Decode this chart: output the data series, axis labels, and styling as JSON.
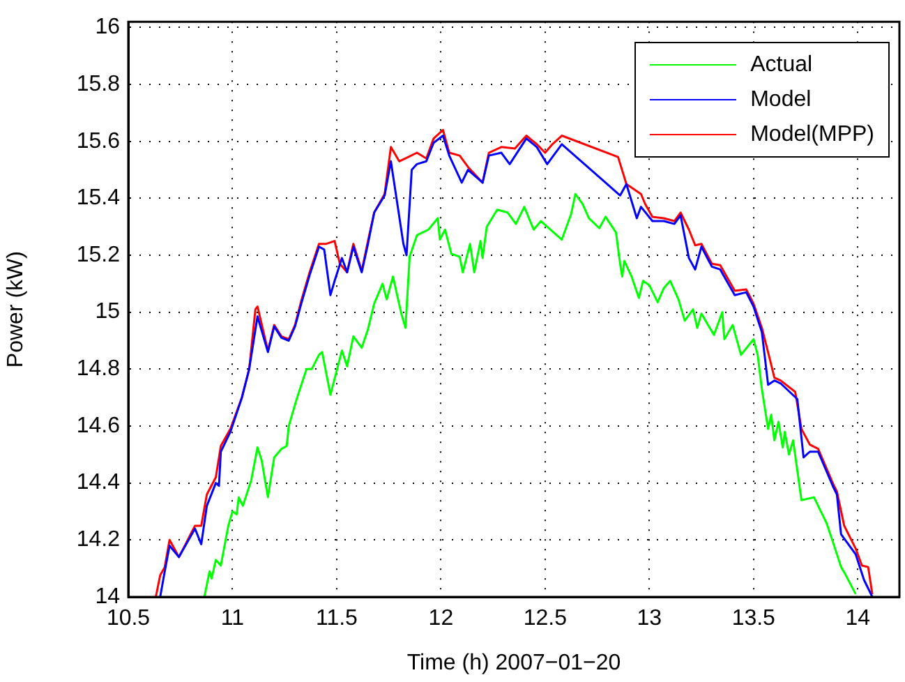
{
  "chart_data": {
    "type": "line",
    "xlabel": "Time (h) 2007−01−20",
    "ylabel": "Power (kW)",
    "xlim": [
      10.5,
      14.2
    ],
    "ylim": [
      14,
      16.02
    ],
    "xticks": [
      10.5,
      11,
      11.5,
      12,
      12.5,
      13,
      13.5,
      14
    ],
    "yticks": [
      14,
      14.2,
      14.4,
      14.6,
      14.8,
      15,
      15.2,
      15.4,
      15.6,
      15.8,
      16
    ],
    "grid": true,
    "legend": "top right",
    "marker": "none",
    "line_style": "solid",
    "series": [
      {
        "name": "Actual",
        "color": "#00ff00",
        "x": [
          10.865,
          10.89,
          10.9,
          10.92,
          10.944,
          10.98,
          11.0,
          11.02,
          11.03,
          11.05,
          11.09,
          11.12,
          11.14,
          11.17,
          11.2,
          11.235,
          11.26,
          11.27,
          11.31,
          11.355,
          11.38,
          11.415,
          11.43,
          11.47,
          11.525,
          11.55,
          11.58,
          11.62,
          11.65,
          11.68,
          11.72,
          11.74,
          11.77,
          11.81,
          11.83,
          11.85,
          11.885,
          11.94,
          11.985,
          11.995,
          12.02,
          12.05,
          12.09,
          12.105,
          12.14,
          12.16,
          12.19,
          12.2,
          12.22,
          12.27,
          12.32,
          12.36,
          12.4,
          12.445,
          12.48,
          12.51,
          12.58,
          12.625,
          12.645,
          12.68,
          12.71,
          12.76,
          12.79,
          12.84,
          12.86,
          12.87,
          12.88,
          12.915,
          12.95,
          12.97,
          13.0,
          13.04,
          13.07,
          13.1,
          13.14,
          13.17,
          13.21,
          13.23,
          13.25,
          13.31,
          13.35,
          13.36,
          13.4,
          13.44,
          13.5,
          13.52,
          13.54,
          13.57,
          13.585,
          13.6,
          13.62,
          13.64,
          13.65,
          13.67,
          13.69,
          13.73,
          13.79,
          13.85,
          13.88,
          13.92,
          13.94,
          13.99
        ],
        "values": [
          14.0,
          14.09,
          14.065,
          14.13,
          14.11,
          14.25,
          14.3,
          14.29,
          14.35,
          14.32,
          14.41,
          14.525,
          14.48,
          14.35,
          14.49,
          14.52,
          14.53,
          14.6,
          14.7,
          14.8,
          14.8,
          14.85,
          14.86,
          14.71,
          14.865,
          14.81,
          14.915,
          14.875,
          14.94,
          15.03,
          15.1,
          15.045,
          15.125,
          14.995,
          14.945,
          15.195,
          15.27,
          15.29,
          15.33,
          15.255,
          15.29,
          15.205,
          15.195,
          15.14,
          15.24,
          15.14,
          15.25,
          15.19,
          15.3,
          15.36,
          15.35,
          15.31,
          15.37,
          15.29,
          15.32,
          15.3,
          15.255,
          15.345,
          15.415,
          15.38,
          15.33,
          15.295,
          15.335,
          15.28,
          15.17,
          15.125,
          15.18,
          15.125,
          15.05,
          15.11,
          15.095,
          15.035,
          15.085,
          15.11,
          15.045,
          14.97,
          15.01,
          14.945,
          14.995,
          14.92,
          15.0,
          14.905,
          14.955,
          14.85,
          14.905,
          14.85,
          14.73,
          14.59,
          14.64,
          14.55,
          14.615,
          14.525,
          14.58,
          14.5,
          14.55,
          14.34,
          14.35,
          14.26,
          14.195,
          14.105,
          14.08,
          14.01
        ]
      },
      {
        "name": "Model",
        "color": "#0000ff",
        "x": [
          10.653,
          10.675,
          10.698,
          10.743,
          10.82,
          10.85,
          10.877,
          10.92,
          10.935,
          10.944,
          10.99,
          11.045,
          11.08,
          11.12,
          11.17,
          11.2,
          11.235,
          11.27,
          11.3,
          11.33,
          11.37,
          11.415,
          11.44,
          11.47,
          11.49,
          11.525,
          11.55,
          11.58,
          11.62,
          11.65,
          11.68,
          11.73,
          11.76,
          11.82,
          11.835,
          11.86,
          11.885,
          11.93,
          11.965,
          12.01,
          12.04,
          12.1,
          12.13,
          12.2,
          12.23,
          12.29,
          12.33,
          12.41,
          12.46,
          12.51,
          12.58,
          12.86,
          12.89,
          12.94,
          12.96,
          13.015,
          13.07,
          13.12,
          13.15,
          13.19,
          13.22,
          13.25,
          13.3,
          13.34,
          13.41,
          13.465,
          13.5,
          13.54,
          13.57,
          13.6,
          13.63,
          13.71,
          13.74,
          13.77,
          13.81,
          13.88,
          13.9,
          13.92,
          13.94,
          13.99,
          14.03,
          14.07
        ],
        "values": [
          14.0,
          14.09,
          14.18,
          14.14,
          14.24,
          14.185,
          14.32,
          14.4,
          14.39,
          14.51,
          14.58,
          14.7,
          14.8,
          14.985,
          14.86,
          14.95,
          14.91,
          14.9,
          14.95,
          15.03,
          15.13,
          15.23,
          15.22,
          15.06,
          15.11,
          15.19,
          15.14,
          15.23,
          15.14,
          15.24,
          15.35,
          15.41,
          15.53,
          15.24,
          15.2,
          15.5,
          15.52,
          15.53,
          15.595,
          15.62,
          15.55,
          15.455,
          15.5,
          15.455,
          15.55,
          15.56,
          15.52,
          15.61,
          15.58,
          15.52,
          15.59,
          15.41,
          15.45,
          15.33,
          15.37,
          15.32,
          15.32,
          15.31,
          15.34,
          15.19,
          15.15,
          15.23,
          15.16,
          15.15,
          15.06,
          15.07,
          15.02,
          14.93,
          14.745,
          14.76,
          14.75,
          14.695,
          14.49,
          14.51,
          14.51,
          14.39,
          14.36,
          14.22,
          14.2,
          14.15,
          14.06,
          14.0
        ]
      },
      {
        "name": "Model(MPP)",
        "color": "#ff0000",
        "x": [
          10.632,
          10.653,
          10.675,
          10.698,
          10.743,
          10.82,
          10.85,
          10.877,
          10.92,
          10.944,
          10.99,
          11.045,
          11.08,
          11.11,
          11.12,
          11.17,
          11.2,
          11.235,
          11.27,
          11.3,
          11.33,
          11.37,
          11.415,
          11.45,
          11.49,
          11.515,
          11.55,
          11.58,
          11.62,
          11.65,
          11.68,
          11.73,
          11.76,
          11.8,
          11.83,
          11.885,
          11.93,
          11.965,
          12.01,
          12.04,
          12.09,
          12.13,
          12.2,
          12.23,
          12.29,
          12.355,
          12.41,
          12.46,
          12.5,
          12.535,
          12.58,
          12.85,
          12.89,
          12.96,
          12.98,
          13.015,
          13.07,
          13.12,
          13.15,
          13.19,
          13.22,
          13.25,
          13.3,
          13.34,
          13.41,
          13.465,
          13.5,
          13.54,
          13.58,
          13.6,
          13.63,
          13.7,
          13.73,
          13.77,
          13.81,
          13.88,
          13.9,
          13.935,
          13.99,
          14.02,
          14.05,
          14.07
        ],
        "values": [
          14.0,
          14.076,
          14.105,
          14.2,
          14.14,
          14.25,
          14.25,
          14.36,
          14.42,
          14.53,
          14.59,
          14.7,
          14.8,
          15.01,
          15.02,
          14.865,
          14.955,
          14.915,
          14.905,
          14.955,
          15.04,
          15.14,
          15.24,
          15.24,
          15.25,
          15.17,
          15.14,
          15.24,
          15.145,
          15.25,
          15.35,
          15.415,
          15.58,
          15.53,
          15.54,
          15.56,
          15.54,
          15.61,
          15.64,
          15.56,
          15.55,
          15.51,
          15.455,
          15.56,
          15.58,
          15.575,
          15.62,
          15.59,
          15.56,
          15.59,
          15.62,
          15.545,
          15.45,
          15.415,
          15.38,
          15.335,
          15.33,
          15.32,
          15.35,
          15.29,
          15.235,
          15.24,
          15.17,
          15.165,
          15.075,
          15.08,
          15.03,
          14.945,
          14.83,
          14.77,
          14.76,
          14.72,
          14.59,
          14.535,
          14.52,
          14.4,
          14.37,
          14.25,
          14.17,
          14.11,
          14.105,
          14.01
        ]
      }
    ]
  }
}
